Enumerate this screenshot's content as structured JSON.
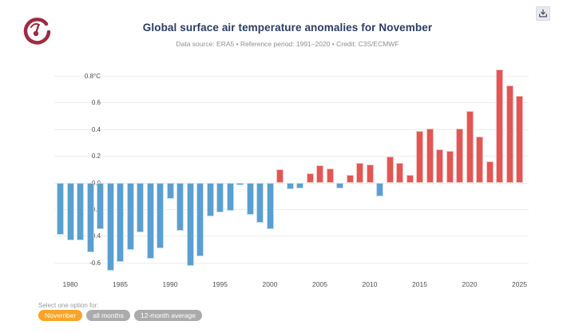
{
  "header": {
    "title": "Global surface air temperature anomalies for November",
    "subtitle": "Data source: ERA5 • Reference period: 1991–2020 • Credit: C3S/ECMWF",
    "logo_name": "climate-pulse-logo",
    "logo_color": "#9c2b43",
    "download_icon": "download-icon"
  },
  "chart_data": {
    "type": "bar",
    "title": "Global surface air temperature anomalies for November",
    "xlabel": "",
    "ylabel": "°C",
    "x": [
      1979,
      1980,
      1981,
      1982,
      1983,
      1984,
      1985,
      1986,
      1987,
      1988,
      1989,
      1990,
      1991,
      1992,
      1993,
      1994,
      1995,
      1996,
      1997,
      1998,
      1999,
      2000,
      2001,
      2002,
      2003,
      2004,
      2005,
      2006,
      2007,
      2008,
      2009,
      2010,
      2011,
      2012,
      2013,
      2014,
      2015,
      2016,
      2017,
      2018,
      2019,
      2020,
      2021,
      2022,
      2023,
      2024,
      2025
    ],
    "values": [
      -0.39,
      -0.43,
      -0.43,
      -0.52,
      -0.35,
      -0.66,
      -0.59,
      -0.5,
      -0.37,
      -0.57,
      -0.49,
      -0.12,
      -0.36,
      -0.62,
      -0.55,
      -0.25,
      -0.22,
      -0.21,
      -0.02,
      -0.24,
      -0.3,
      -0.35,
      0.1,
      -0.05,
      -0.04,
      0.07,
      0.13,
      0.11,
      -0.04,
      0.06,
      0.15,
      0.14,
      -0.1,
      0.2,
      0.15,
      0.06,
      0.39,
      0.41,
      0.25,
      0.24,
      0.41,
      0.54,
      0.35,
      0.16,
      0.85,
      0.73,
      0.65
    ],
    "yticks": [
      0.8,
      0.6,
      0.4,
      0.2,
      0.0,
      -0.2,
      -0.4,
      -0.6
    ],
    "ytick_labels": [
      "0.8°C",
      "0.6",
      "0.4",
      "0.2",
      "0.0",
      "-0.2",
      "-0.4",
      "-0.6"
    ],
    "xticks": [
      1980,
      1985,
      1990,
      1995,
      2000,
      2005,
      2010,
      2015,
      2020,
      2025
    ],
    "ylim": [
      -0.72,
      0.92
    ],
    "grid": true,
    "legend": "none",
    "colors": {
      "positive": "#e25653",
      "negative": "#5a9fd0"
    }
  },
  "footer": {
    "select_label": "Select one option for:",
    "options": [
      {
        "label": "November",
        "active": true,
        "color": "#f7a428"
      },
      {
        "label": "all months",
        "active": false,
        "color": "#ababab"
      },
      {
        "label": "12-month average",
        "active": false,
        "color": "#ababab"
      }
    ]
  }
}
